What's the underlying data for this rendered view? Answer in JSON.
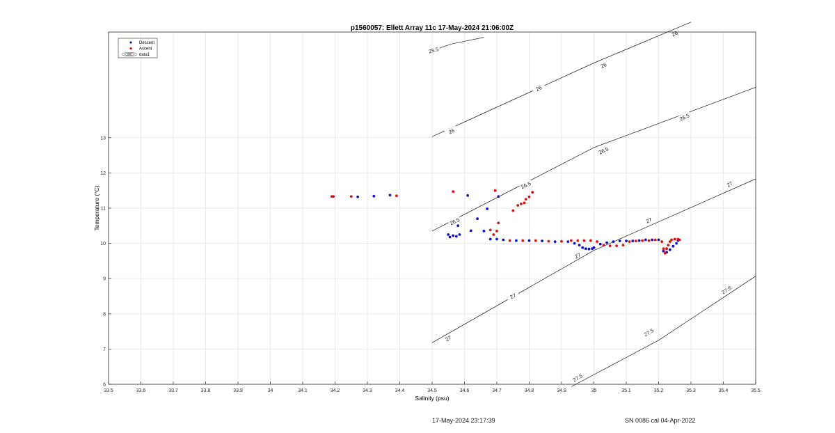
{
  "chart_data": {
    "type": "scatter",
    "title": "p1560057: Ellett Array 11c 17-May-2024 21:06:00Z",
    "xlabel": "Salinity (psu)",
    "ylabel": "Temperature (°C)",
    "xlim": [
      33.5,
      35.5
    ],
    "ylim": [
      6,
      16
    ],
    "x_ticks": [
      33.5,
      33.6,
      33.7,
      33.8,
      33.9,
      34,
      34.1,
      34.2,
      34.3,
      34.4,
      34.5,
      34.6,
      34.7,
      34.8,
      34.9,
      35,
      35.1,
      35.2,
      35.3,
      35.4,
      35.5
    ],
    "x_tick_labels": [
      "33.5",
      "33.6",
      "33.7",
      "33.8",
      "33.9",
      "34",
      "34.1",
      "34.2",
      "34.3",
      "34.4",
      "34.5",
      "34.6",
      "34.7",
      "34.8",
      "34.9",
      "35",
      "35.1",
      "35.2",
      "35.3",
      "35.4",
      "35.5"
    ],
    "y_ticks": [
      6,
      7,
      8,
      9,
      10,
      11,
      12,
      13
    ],
    "y_tick_labels": [
      "6",
      "7",
      "8",
      "9",
      "10",
      "11",
      "12",
      "13"
    ],
    "grid": true,
    "legend_position": "top-left",
    "legend": [
      {
        "label": "Descent",
        "marker": "dot",
        "color": "#1010c8"
      },
      {
        "label": "Ascent",
        "marker": "dot",
        "color": "#e01010"
      },
      {
        "label": "data1",
        "marker": "contour"
      }
    ],
    "series": [
      {
        "name": "Descent",
        "color": "#1010c8",
        "points": [
          [
            34.27,
            11.32
          ],
          [
            34.32,
            11.34
          ],
          [
            34.37,
            11.37
          ],
          [
            34.55,
            10.25
          ],
          [
            34.555,
            10.18
          ],
          [
            34.565,
            10.22
          ],
          [
            34.575,
            10.2
          ],
          [
            34.585,
            10.25
          ],
          [
            34.58,
            10.5
          ],
          [
            34.61,
            11.36
          ],
          [
            34.62,
            10.36
          ],
          [
            34.64,
            10.7
          ],
          [
            34.66,
            10.35
          ],
          [
            34.67,
            10.98
          ],
          [
            34.68,
            10.12
          ],
          [
            34.7,
            10.12
          ],
          [
            34.705,
            11.33
          ],
          [
            34.72,
            10.1
          ],
          [
            34.76,
            10.08
          ],
          [
            34.8,
            10.08
          ],
          [
            34.84,
            10.07
          ],
          [
            34.88,
            10.05
          ],
          [
            34.92,
            10.05
          ],
          [
            34.94,
            10.0
          ],
          [
            34.955,
            9.95
          ],
          [
            34.965,
            9.88
          ],
          [
            34.975,
            9.85
          ],
          [
            34.985,
            9.84
          ],
          [
            34.995,
            9.85
          ],
          [
            35.0,
            9.88
          ],
          [
            35.02,
            9.98
          ],
          [
            35.04,
            10.02
          ],
          [
            35.06,
            10.05
          ],
          [
            35.08,
            10.07
          ],
          [
            35.1,
            10.07
          ],
          [
            35.12,
            10.07
          ],
          [
            35.14,
            10.08
          ],
          [
            35.16,
            10.1
          ],
          [
            35.18,
            10.1
          ],
          [
            35.2,
            10.1
          ],
          [
            35.215,
            9.78
          ],
          [
            35.225,
            9.75
          ],
          [
            35.235,
            9.82
          ],
          [
            35.245,
            9.92
          ],
          [
            35.255,
            10.0
          ],
          [
            35.26,
            10.08
          ]
        ]
      },
      {
        "name": "Ascent",
        "color": "#e01010",
        "points": [
          [
            34.19,
            11.33
          ],
          [
            34.195,
            11.33
          ],
          [
            34.25,
            11.33
          ],
          [
            34.39,
            11.35
          ],
          [
            34.565,
            11.47
          ],
          [
            34.68,
            10.38
          ],
          [
            34.69,
            10.25
          ],
          [
            34.695,
            11.5
          ],
          [
            34.7,
            10.35
          ],
          [
            34.705,
            10.58
          ],
          [
            34.75,
            10.93
          ],
          [
            34.765,
            11.08
          ],
          [
            34.775,
            11.12
          ],
          [
            34.785,
            11.15
          ],
          [
            34.79,
            11.25
          ],
          [
            34.8,
            11.32
          ],
          [
            34.81,
            11.45
          ],
          [
            34.74,
            10.08
          ],
          [
            34.78,
            10.08
          ],
          [
            34.82,
            10.08
          ],
          [
            34.86,
            10.06
          ],
          [
            34.9,
            10.06
          ],
          [
            34.93,
            10.08
          ],
          [
            34.95,
            10.08
          ],
          [
            34.97,
            10.08
          ],
          [
            34.99,
            10.08
          ],
          [
            35.01,
            10.05
          ],
          [
            35.03,
            9.95
          ],
          [
            35.05,
            9.93
          ],
          [
            35.07,
            9.93
          ],
          [
            35.09,
            9.95
          ],
          [
            35.11,
            10.05
          ],
          [
            35.13,
            10.07
          ],
          [
            35.15,
            10.08
          ],
          [
            35.17,
            10.08
          ],
          [
            35.19,
            10.1
          ],
          [
            35.21,
            10.05
          ],
          [
            35.215,
            9.85
          ],
          [
            35.22,
            9.72
          ],
          [
            35.225,
            9.85
          ],
          [
            35.23,
            9.95
          ],
          [
            35.235,
            10.05
          ],
          [
            35.24,
            10.1
          ],
          [
            35.25,
            10.12
          ],
          [
            35.26,
            10.12
          ],
          [
            35.265,
            10.1
          ]
        ]
      }
    ],
    "density_contours": [
      {
        "label": "25.5",
        "points": [
          [
            34.5,
            15.45
          ],
          [
            34.53,
            15.57
          ],
          [
            34.56,
            15.66
          ],
          [
            34.66,
            15.85
          ]
        ],
        "label_positions": [
          [
            34.505,
            15.48
          ]
        ]
      },
      {
        "label": "26",
        "points": [
          [
            34.5,
            13.03
          ],
          [
            35.0,
            15.12
          ],
          [
            35.3,
            16.28
          ]
        ],
        "label_positions": [
          [
            34.56,
            13.18
          ],
          [
            34.83,
            14.4
          ],
          [
            35.03,
            15.05
          ],
          [
            35.25,
            15.95
          ]
        ]
      },
      {
        "label": "26.5",
        "points": [
          [
            34.5,
            10.35
          ],
          [
            35.0,
            12.72
          ],
          [
            35.5,
            14.43
          ]
        ],
        "label_positions": [
          [
            34.57,
            10.62
          ],
          [
            34.79,
            11.65
          ],
          [
            35.03,
            12.63
          ],
          [
            35.28,
            13.58
          ]
        ]
      },
      {
        "label": "27",
        "points": [
          [
            34.5,
            7.18
          ],
          [
            35.0,
            9.8
          ],
          [
            35.5,
            11.83
          ]
        ],
        "label_positions": [
          [
            34.55,
            7.3
          ],
          [
            34.75,
            8.5
          ],
          [
            34.95,
            9.65
          ],
          [
            35.17,
            10.65
          ],
          [
            35.42,
            11.68
          ]
        ]
      },
      {
        "label": "27.5",
        "points": [
          [
            34.93,
            5.93
          ],
          [
            35.2,
            7.25
          ],
          [
            35.5,
            9.07
          ]
        ],
        "label_positions": [
          [
            34.95,
            6.18
          ],
          [
            35.17,
            7.47
          ],
          [
            35.41,
            8.67
          ]
        ]
      }
    ]
  },
  "footer": {
    "timestamp": "17-May-2024 23:17:39",
    "calibration": "SN 0086 cal 04-Apr-2022"
  }
}
